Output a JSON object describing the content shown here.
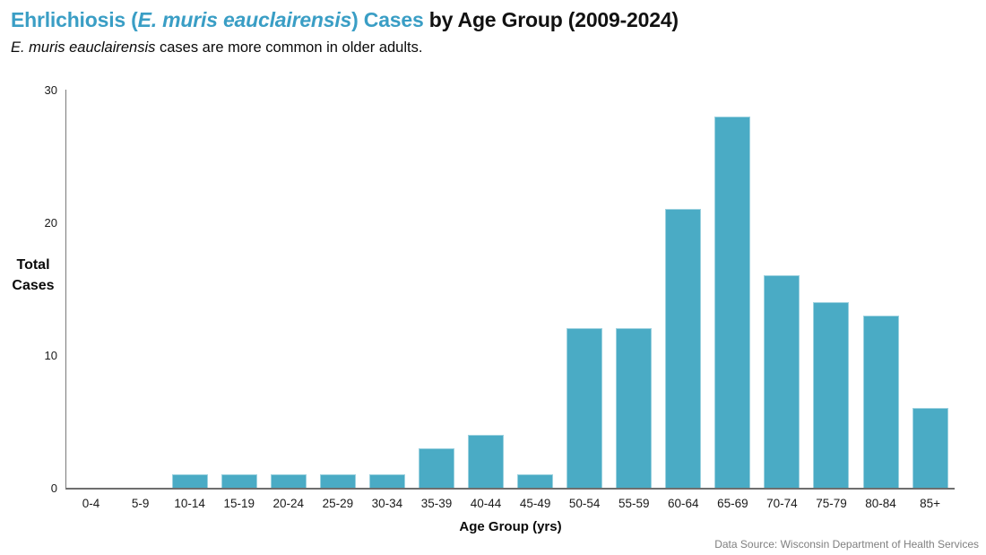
{
  "header": {
    "title_teal_1": "Ehrlichiosis (",
    "title_species": "E. muris eauclairensis",
    "title_teal_2": ") Cases ",
    "title_black": "by Age Group (2009-2024)",
    "subtitle_italic": "E. muris eauclairensis",
    "subtitle_rest": " cases are more common in older adults."
  },
  "chart_data": {
    "type": "bar",
    "title": "Ehrlichiosis (E. muris eauclairensis) Cases by Age Group (2009-2024)",
    "subtitle": "E. muris eauclairensis cases are more common in older adults.",
    "categories": [
      "0-4",
      "5-9",
      "10-14",
      "15-19",
      "20-24",
      "25-29",
      "30-34",
      "35-39",
      "40-44",
      "45-49",
      "50-54",
      "55-59",
      "60-64",
      "65-69",
      "70-74",
      "75-79",
      "80-84",
      "85+"
    ],
    "values": [
      0,
      0,
      1,
      1,
      1,
      1,
      1,
      3,
      4,
      1,
      12,
      12,
      21,
      28,
      16,
      14,
      13,
      6
    ],
    "xlabel": "Age Group (yrs)",
    "ylabel": "Total Cases",
    "ylabel_lines": [
      "Total",
      "Cases"
    ],
    "ylim": [
      0,
      30
    ],
    "yticks": [
      "0",
      "10",
      "20",
      "30"
    ],
    "grid": false,
    "legend": false,
    "bar_color": "#4AABC5"
  },
  "footer": {
    "source": "Data Source: Wisconsin Department of Health Services"
  },
  "colors": {
    "title_accent": "#3A9EC5",
    "bar": "#4AABC5",
    "axis": "#6e6e6e",
    "muted_text": "#7f7f7f"
  }
}
